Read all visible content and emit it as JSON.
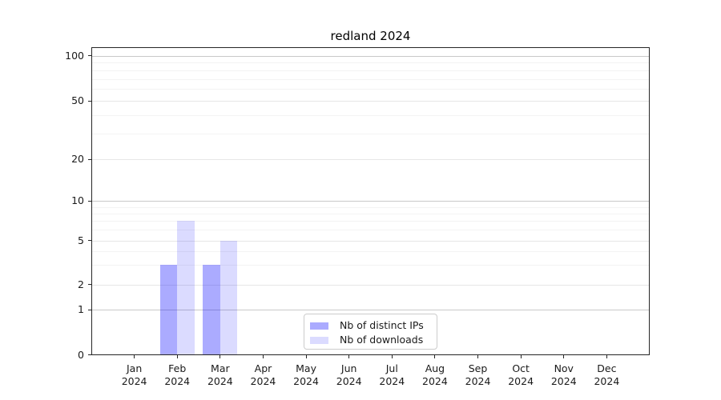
{
  "chart_data": {
    "type": "bar",
    "title": "redland 2024",
    "categories": [
      "Jan",
      "Feb",
      "Mar",
      "Apr",
      "May",
      "Jun",
      "Jul",
      "Aug",
      "Sep",
      "Oct",
      "Nov",
      "Dec"
    ],
    "year_label": "2024",
    "series": [
      {
        "name": "Nb of distinct IPs",
        "color": "rgba(0,0,255,0.33)",
        "values": [
          0,
          3,
          3,
          0,
          0,
          0,
          0,
          0,
          0,
          0,
          0,
          0
        ]
      },
      {
        "name": "Nb of downloads",
        "color": "rgba(0,0,255,0.14)",
        "values": [
          0,
          7,
          5,
          0,
          0,
          0,
          0,
          0,
          0,
          0,
          0,
          0
        ]
      }
    ],
    "y_axis": {
      "scale": "symlog",
      "major_ticks": [
        0,
        1,
        2,
        5,
        10,
        20,
        50,
        100
      ],
      "minor_ticks": [
        3,
        4,
        6,
        7,
        8,
        9,
        30,
        40,
        60,
        70,
        80,
        90
      ],
      "range": [
        0,
        115
      ]
    },
    "x_axis": {
      "label_format": "month over year"
    },
    "legend": {
      "position": "lower-center",
      "entries": [
        "Nb of distinct IPs",
        "Nb of downloads"
      ]
    },
    "grid": true,
    "colors": {
      "decade_grid": "#c9c9c9",
      "major_grid": "#e7e7e7",
      "minor_grid": "#f3f3f3",
      "axis_frame": "#262626",
      "text": "#1a1a1a",
      "background": "#ffffff"
    }
  }
}
